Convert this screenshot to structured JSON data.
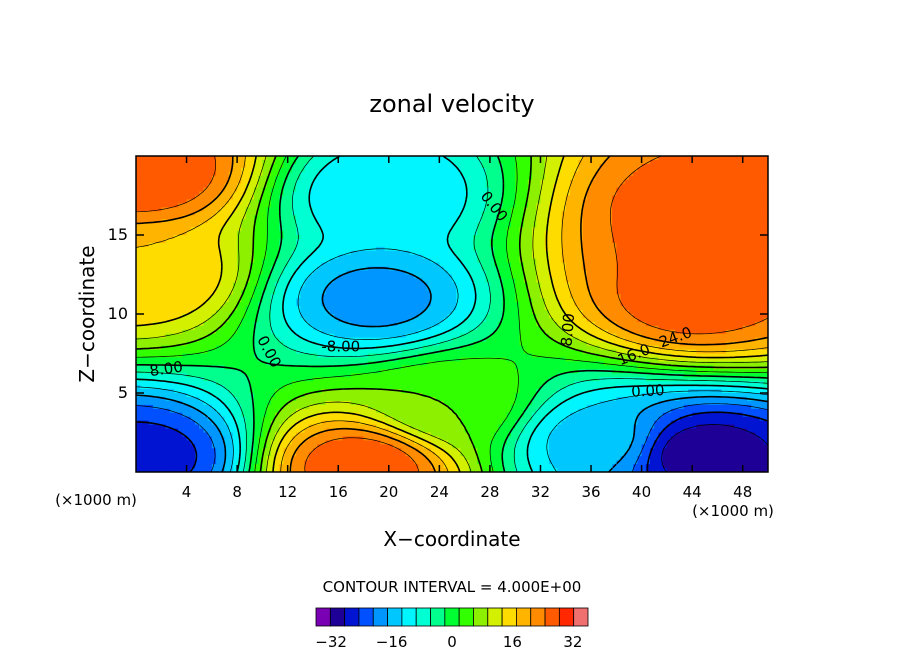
{
  "chart_data": {
    "type": "heatmap",
    "title": "zonal velocity",
    "xlabel": "X−coordinate",
    "ylabel": "Z−coordinate",
    "x_unit_note": "(×1000 m)",
    "x_range": [
      0,
      50
    ],
    "z_range": [
      0,
      20
    ],
    "x_ticks": [
      4,
      8,
      12,
      16,
      20,
      24,
      28,
      32,
      36,
      40,
      44,
      48
    ],
    "x_tick_labels": [
      "4",
      "8",
      "12",
      "16",
      "20",
      "24",
      "28",
      "32",
      "36",
      "40",
      "44",
      "48"
    ],
    "z_ticks": [
      5,
      10,
      15
    ],
    "z_tick_labels": [
      "5",
      "10",
      "15"
    ],
    "contour_interval_text": "CONTOUR INTERVAL = 4.000E+00",
    "contour_labels": [
      {
        "text": "0.00",
        "x": 10.5,
        "z": 7.6,
        "rot": 62
      },
      {
        "text": "-8.00",
        "x": 16.2,
        "z": 7.9,
        "rot": 0
      },
      {
        "text": "8.00",
        "x": 2.4,
        "z": 6.5,
        "rot": -8
      },
      {
        "text": "0.00",
        "x": 28.3,
        "z": 16.8,
        "rot": 52
      },
      {
        "text": "8.00",
        "x": 34.2,
        "z": 9.0,
        "rot": -85
      },
      {
        "text": "24.0",
        "x": 42.7,
        "z": 8.5,
        "rot": -20
      },
      {
        "text": "16.0",
        "x": 39.4,
        "z": 7.4,
        "rot": -22
      },
      {
        "text": "0.00",
        "x": 40.5,
        "z": 5.1,
        "rot": -3
      }
    ],
    "field_features": [
      {
        "name": "upper-left jet",
        "x": 0.5,
        "z": 19.0,
        "value": 32
      },
      {
        "name": "left positive band",
        "x": 0.8,
        "z": 12.5,
        "value": 20
      },
      {
        "name": "central negative core",
        "x": 19.0,
        "z": 11.0,
        "value": -18
      },
      {
        "name": "central negative upper",
        "x": 19.5,
        "z": 17.5,
        "value": -12
      },
      {
        "name": "lower left negative",
        "x": 0.8,
        "z": 1.0,
        "value": -26
      },
      {
        "name": "lower middle positive",
        "x": 18.0,
        "z": 0.4,
        "value": 32
      },
      {
        "name": "upper right jet core",
        "x": 44.5,
        "z": 16.5,
        "value": 31
      },
      {
        "name": "upper right jet mid",
        "x": 44.0,
        "z": 11.0,
        "value": 31
      },
      {
        "name": "upper right jet",
        "x": 45.0,
        "z": 14.0,
        "value": 30
      },
      {
        "name": "lower right negative",
        "x": 44.5,
        "z": 1.2,
        "value": -31
      },
      {
        "name": "lower right negative edge",
        "x": 36.5,
        "z": 2.0,
        "value": -14
      },
      {
        "name": "small positive blob",
        "x": 24.7,
        "z": 4.2,
        "value": 8
      }
    ],
    "colorbar": {
      "levels": [
        -36,
        -32,
        -28,
        -24,
        -20,
        -16,
        -12,
        -8,
        -4,
        0,
        4,
        8,
        12,
        16,
        20,
        24,
        28,
        32,
        36
      ],
      "colors": [
        "#7a00b4",
        "#1e0096",
        "#0014d2",
        "#0050ff",
        "#0096ff",
        "#00c8ff",
        "#00f5ff",
        "#00ffd2",
        "#00ff8c",
        "#00ff32",
        "#32ff00",
        "#8cf000",
        "#d2f000",
        "#ffdc00",
        "#ffb400",
        "#ff8c00",
        "#ff5a00",
        "#ff2800",
        "#f07070"
      ],
      "tick_values": [
        -32,
        -16,
        0,
        16,
        32
      ],
      "tick_labels": [
        "−32",
        "−16",
        "0",
        "16",
        "32"
      ]
    }
  }
}
